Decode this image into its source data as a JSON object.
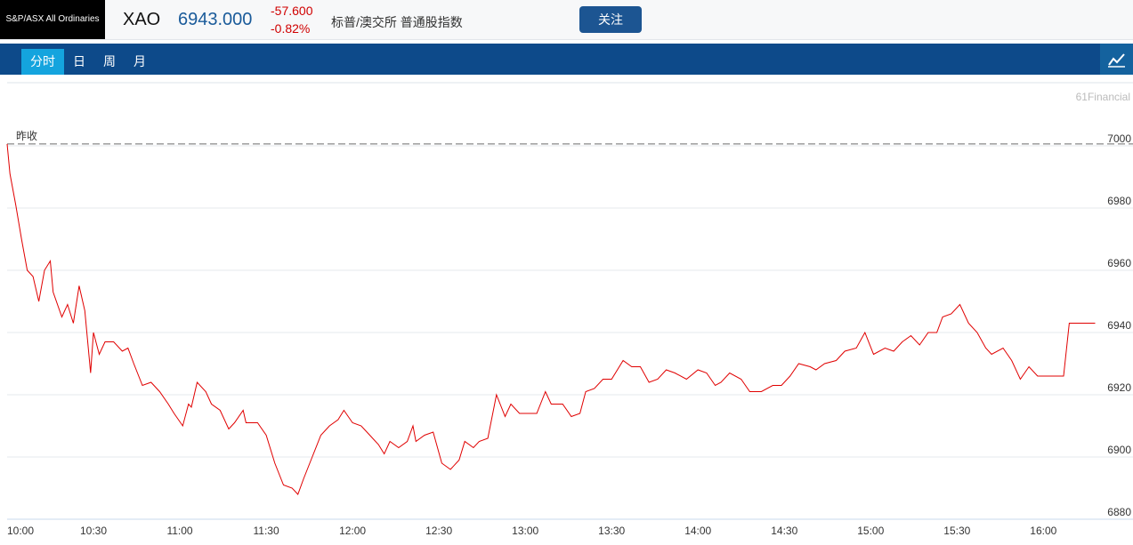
{
  "header": {
    "logo": "S&P/ASX All Ordinaries",
    "symbol": "XAO",
    "price": "6943.000",
    "change": "-57.600",
    "change_pct": "-0.82%",
    "name": "标普/澳交所 普通股指数",
    "button": "关注"
  },
  "tabs": [
    "分时",
    "日",
    "周",
    "月"
  ],
  "watermark": "61Financial",
  "chart_data": {
    "type": "line",
    "color": "#e00000",
    "prev_close": 7000.6,
    "prev_close_label": "昨收",
    "x": [
      "10:00",
      "10:01",
      "10:03",
      "10:05",
      "10:07",
      "10:09",
      "10:11",
      "10:13",
      "10:15",
      "10:16",
      "10:19",
      "10:21",
      "10:23",
      "10:25",
      "10:27",
      "10:29",
      "10:30",
      "10:32",
      "10:34",
      "10:37",
      "10:40",
      "10:42",
      "10:44",
      "10:47",
      "10:50",
      "10:53",
      "10:56",
      "10:58",
      "11:01",
      "11:03",
      "11:04",
      "11:06",
      "11:09",
      "11:11",
      "11:14",
      "11:17",
      "11:19",
      "11:22",
      "11:23",
      "11:27",
      "11:30",
      "11:33",
      "11:36",
      "11:39",
      "11:41",
      "11:43",
      "11:46",
      "11:49",
      "11:52",
      "11:55",
      "11:57",
      "12:00",
      "12:03",
      "12:06",
      "12:09",
      "12:11",
      "12:13",
      "12:16",
      "12:19",
      "12:21",
      "12:22",
      "12:25",
      "12:28",
      "12:31",
      "12:34",
      "12:37",
      "12:39",
      "12:42",
      "12:44",
      "12:47",
      "12:50",
      "12:53",
      "12:55",
      "12:58",
      "13:01",
      "13:04",
      "13:07",
      "13:09",
      "13:13",
      "13:16",
      "13:19",
      "13:21",
      "13:24",
      "13:27",
      "13:30",
      "13:34",
      "13:37",
      "13:40",
      "13:43",
      "13:46",
      "13:49",
      "13:52",
      "13:56",
      "14:00",
      "14:03",
      "14:06",
      "14:08",
      "14:11",
      "14:15",
      "14:18",
      "14:22",
      "14:26",
      "14:29",
      "14:32",
      "14:35",
      "14:39",
      "14:41",
      "14:44",
      "14:48",
      "14:51",
      "14:55",
      "14:58",
      "15:01",
      "15:05",
      "15:08",
      "15:11",
      "15:14",
      "15:17",
      "15:20",
      "15:23",
      "15:25",
      "15:28",
      "15:31",
      "15:34",
      "15:37",
      "15:40",
      "15:42",
      "15:46",
      "15:49",
      "15:52",
      "15:55",
      "15:58",
      "16:07",
      "16:09",
      "16:18"
    ],
    "values": [
      7000.6,
      6991,
      6981,
      6970,
      6960,
      6958,
      6950,
      6960,
      6963,
      6953,
      6945,
      6949,
      6943,
      6955,
      6947,
      6927,
      6940,
      6933,
      6937,
      6937,
      6934,
      6935,
      6930,
      6923,
      6924,
      6921,
      6917,
      6914,
      6910,
      6917,
      6916,
      6924,
      6921,
      6917,
      6915,
      6909,
      6911,
      6915,
      6911,
      6911,
      6907,
      6898,
      6891,
      6890,
      6888,
      6893,
      6900,
      6907,
      6910,
      6912,
      6915,
      6911,
      6910,
      6907,
      6904,
      6901,
      6905,
      6903,
      6905,
      6910,
      6905,
      6907,
      6908,
      6898,
      6896,
      6899,
      6905,
      6903,
      6905,
      6906,
      6920,
      6913,
      6917,
      6914,
      6914,
      6914,
      6921,
      6917,
      6917,
      6913,
      6914,
      6921,
      6922,
      6925,
      6925,
      6931,
      6929,
      6929,
      6924,
      6925,
      6928,
      6927,
      6925,
      6928,
      6927,
      6923,
      6924,
      6927,
      6925,
      6921,
      6921,
      6923,
      6923,
      6926,
      6930,
      6929,
      6928,
      6930,
      6931,
      6934,
      6935,
      6940,
      6933,
      6935,
      6934,
      6937,
      6939,
      6936,
      6940,
      6940,
      6945,
      6946,
      6949,
      6943,
      6940,
      6935,
      6933,
      6935,
      6931,
      6925,
      6929,
      6926,
      6926,
      6943,
      6943
    ],
    "xlim": [
      "10:00",
      "16:20"
    ],
    "xticks": [
      "10:00",
      "10:30",
      "11:00",
      "11:30",
      "12:00",
      "12:30",
      "13:00",
      "13:30",
      "14:00",
      "14:30",
      "15:00",
      "15:30",
      "16:00"
    ],
    "ylim": [
      6880,
      7020
    ],
    "yticks": [
      6880,
      6900,
      6920,
      6940,
      6960,
      6980,
      7000
    ],
    "grid": true
  }
}
